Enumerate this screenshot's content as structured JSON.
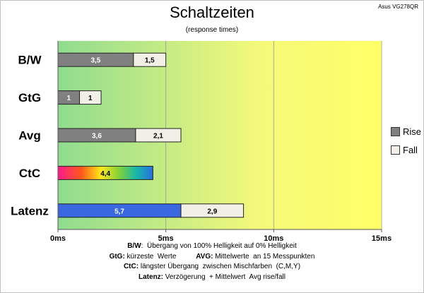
{
  "model": "Asus VG278QR",
  "title": "Schaltzeiten",
  "subtitle": "(response times)",
  "chart_data": {
    "type": "bar",
    "orientation": "horizontal",
    "stacked": true,
    "categories": [
      "B/W",
      "GtG",
      "Avg",
      "CtC",
      "Latenz"
    ],
    "series": [
      {
        "name": "Rise",
        "values": [
          3.5,
          1,
          3.6,
          4.4,
          5.7
        ],
        "labels": [
          "3,5",
          "1",
          "3,6",
          "4,4",
          "5,7"
        ],
        "color": "#808080"
      },
      {
        "name": "Fall",
        "values": [
          1.5,
          1,
          2.1,
          null,
          2.9
        ],
        "labels": [
          "1,5",
          "1",
          "2,1",
          "",
          "2,9"
        ],
        "color": "#f2efe6"
      }
    ],
    "special_colors": {
      "CtC": "rainbow",
      "Latenz": "#3a68e0"
    },
    "xlim": [
      0,
      15
    ],
    "xticks": [
      0,
      5,
      10,
      15
    ],
    "xtick_labels": [
      "0ms",
      "5ms",
      "10ms",
      "15ms"
    ],
    "background_gradient": [
      "#8fdc8f",
      "#f4f97a",
      "#ffff66"
    ],
    "grid": true,
    "legend": "right"
  },
  "notes": [
    {
      "parts": [
        {
          "b": "B/W"
        },
        {
          "t": ":  Übergang von 100% Helligkeit auf 0% Helligkeit"
        }
      ]
    },
    {
      "parts": [
        {
          "b": "GtG:"
        },
        {
          "t": " kürzeste  Werte          "
        },
        {
          "b": "AVG:"
        },
        {
          "t": " Mittelwerte  an 15 Messpunkten"
        }
      ]
    },
    {
      "parts": [
        {
          "b": "CtC:"
        },
        {
          "t": " längster Übergang  zwischen Mischfarben  (C,M,Y)"
        }
      ]
    },
    {
      "parts": [
        {
          "b": "Latenz:"
        },
        {
          "t": " Verzögerung  + Mittelwert  Avg rise/fall"
        }
      ]
    }
  ]
}
